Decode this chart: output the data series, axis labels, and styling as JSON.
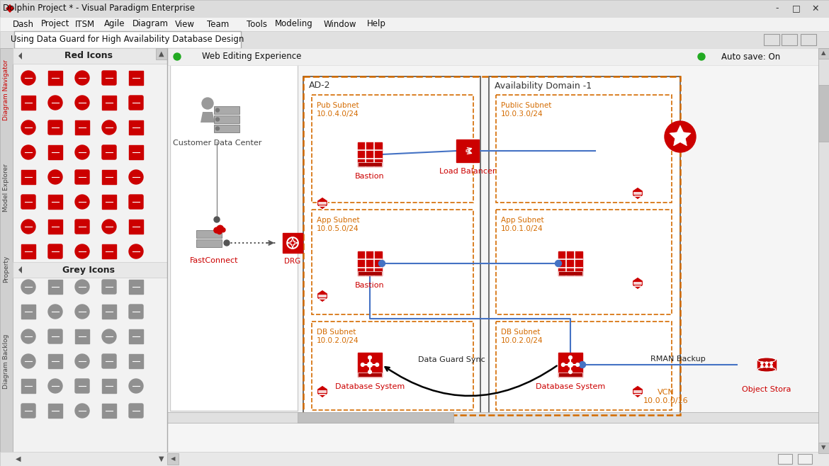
{
  "title": "Dolphin Project * - Visual Paradigm Enterprise",
  "tab_label": "Using Data Guard for High Availability Database Design",
  "menu_items": [
    "Dash",
    "Project",
    "ITSM",
    "Agile",
    "Diagram",
    "View",
    "Team",
    "Tools",
    "Modeling",
    "Window",
    "Help"
  ],
  "web_editing_label": "Web Editing Experience",
  "autosave_label": "Auto save: On",
  "left_panel_title": "Red Icons",
  "left_panel_title2": "Grey Icons",
  "sidebar_labels": [
    "Diagram Navigator",
    "Model Explorer",
    "Property",
    "Diagram Backlog"
  ],
  "ad2_label": "AD-2",
  "ad1_label": "Availability Domain -1",
  "customer_dc_label": "Customer Data Center",
  "fastconnect_label": "FastConnect",
  "drg_label": "DRG",
  "pub_subnet_ad2": "Pub Subnet\n10.0.4.0/24",
  "app_subnet_ad2": "App Subnet\n10.0.5.0/24",
  "db_subnet_ad2": "DB Subnet\n10.0.2.0/24",
  "pub_subnet_ad1": "Public Subnet\n10.0.3.0/24",
  "app_subnet_ad1": "App Subnet\n10.0.1.0/24",
  "db_subnet_ad1": "DB Subnet\n10.0.2.0/24",
  "bastion1_label": "Bastion",
  "bastion2_label": "Bastion",
  "db_system_ad2": "Database System",
  "db_system_ad1": "Database System",
  "load_balancer_label": "Load Balancer",
  "data_guard_label": "Data Guard Sync",
  "rman_backup_label": "RMAN Backup",
  "vcn_label": "VCN\n10.0.0.0/16",
  "object_storage_label": "Object Stora",
  "bg_color": "#e8e8e8",
  "panel_bg": "#f0f0f0",
  "canvas_bg": "#ffffff",
  "red_color": "#cc0000",
  "orange_color": "#d46b00",
  "dashed_orange": "#d46b00",
  "blue_connector": "#4472c4",
  "title_bar_color": "#e0e0e0",
  "menu_bar_color": "#f5f5f5"
}
